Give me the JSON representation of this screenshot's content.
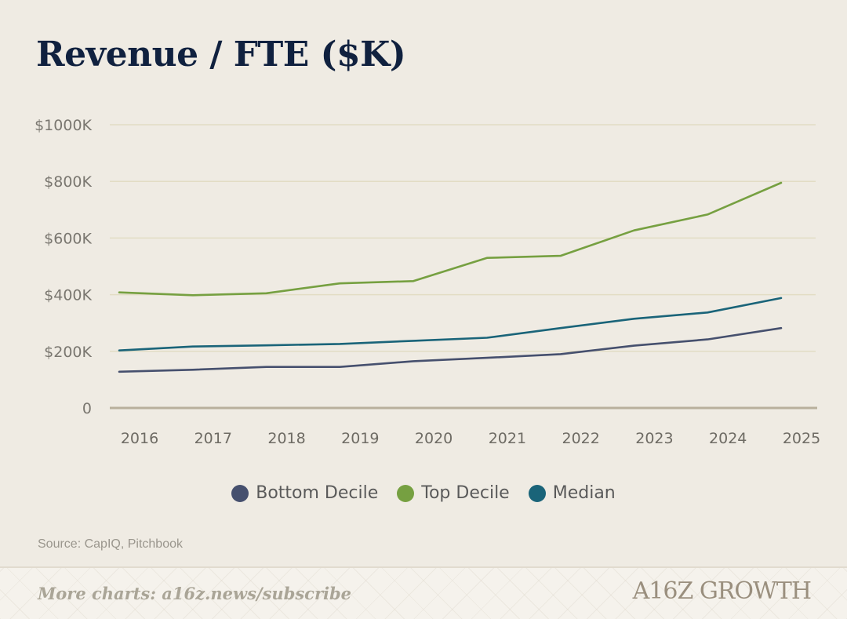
{
  "title": "Revenue / FTE ($K)",
  "source": "Source: CapIQ, Pitchbook",
  "footer": {
    "link_text": "More charts: a16z.news/subscribe",
    "brand": "A16Z GROWTH"
  },
  "colors": {
    "background": "#efebe3",
    "title": "#10213f",
    "grid": "#e2dcc4",
    "axis": "#b9b09c",
    "bottom_decile": "#46506e",
    "top_decile": "#76a041",
    "median": "#1a6479"
  },
  "chart_data": {
    "type": "line",
    "title": "Revenue / FTE ($K)",
    "xlabel": "",
    "ylabel": "",
    "categories": [
      "2016",
      "2017",
      "2018",
      "2019",
      "2020",
      "2021",
      "2022",
      "2023",
      "2024",
      "2025"
    ],
    "y_ticks": [
      "0",
      "$200K",
      "$400K",
      "$600K",
      "$800K",
      "$1000K"
    ],
    "y_tick_values": [
      0,
      200,
      400,
      600,
      800,
      1000
    ],
    "ylim": [
      0,
      1000
    ],
    "grid": true,
    "legend_position": "bottom",
    "series": [
      {
        "name": "Bottom Decile",
        "color": "#46506e",
        "values": [
          128,
          135,
          145,
          145,
          165,
          177,
          190,
          220,
          242,
          282
        ]
      },
      {
        "name": "Top Decile",
        "color": "#76a041",
        "values": [
          408,
          398,
          405,
          440,
          448,
          530,
          537,
          627,
          683,
          795
        ]
      },
      {
        "name": "Median",
        "color": "#1a6479",
        "values": [
          203,
          217,
          221,
          226,
          237,
          248,
          282,
          315,
          337,
          388
        ]
      }
    ]
  }
}
